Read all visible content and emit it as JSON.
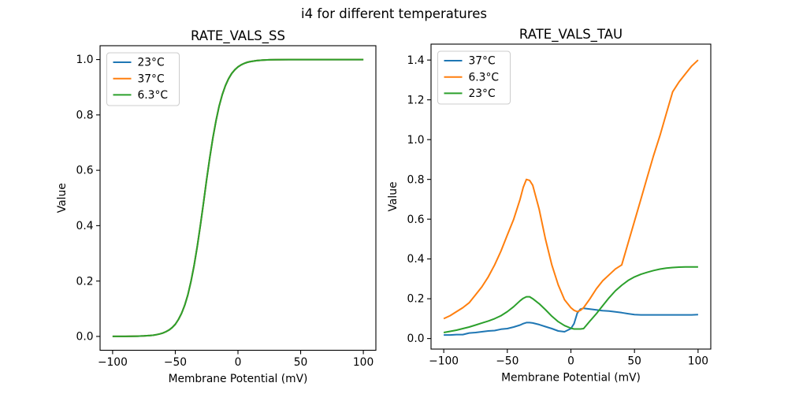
{
  "suptitle": "i4 for different temperatures",
  "colors": {
    "blue": "#1f77b4",
    "orange": "#ff7f0e",
    "green": "#2ca02c",
    "axis": "#000000",
    "legend_border": "#cccccc",
    "background": "#ffffff"
  },
  "chart_data": [
    {
      "type": "line",
      "title": "RATE_VALS_SS",
      "xlabel": "Membrane Potential (mV)",
      "ylabel": "Value",
      "grid": false,
      "legend_position": "upper-left",
      "xlim": [
        -110,
        110
      ],
      "ylim": [
        -0.05,
        1.05
      ],
      "xticks": [
        -100,
        -50,
        0,
        50,
        100
      ],
      "xtick_labels": [
        "−100",
        "−50",
        "0",
        "50",
        "100"
      ],
      "yticks": [
        0.0,
        0.2,
        0.4,
        0.6,
        0.8,
        1.0
      ],
      "ytick_labels": [
        "0.0",
        "0.2",
        "0.4",
        "0.6",
        "0.8",
        "1.0"
      ],
      "x": [
        -100,
        -95,
        -90,
        -85,
        -80,
        -75,
        -70,
        -67.5,
        -65,
        -62.5,
        -60,
        -57.5,
        -55,
        -52.5,
        -50,
        -47.5,
        -45,
        -42.5,
        -40,
        -37.5,
        -35,
        -32.5,
        -30,
        -27.5,
        -25,
        -22.5,
        -20,
        -17.5,
        -15,
        -12.5,
        -10,
        -7.5,
        -5,
        -2.5,
        0,
        2.5,
        5,
        7.5,
        10,
        15,
        20,
        25,
        30,
        40,
        50,
        60,
        70,
        80,
        90,
        100
      ],
      "series": [
        {
          "name": "23°C",
          "color_key": "blue",
          "values": [
            0.0001,
            0.0001,
            0.0002,
            0.0004,
            0.0009,
            0.0017,
            0.0032,
            0.0045,
            0.0063,
            0.0088,
            0.0121,
            0.0169,
            0.0232,
            0.032,
            0.0439,
            0.0611,
            0.0832,
            0.1124,
            0.1502,
            0.1978,
            0.256,
            0.3245,
            0.4013,
            0.4833,
            0.5662,
            0.6457,
            0.7178,
            0.7802,
            0.832,
            0.8736,
            0.9061,
            0.9309,
            0.9494,
            0.9633,
            0.9734,
            0.9808,
            0.9862,
            0.9901,
            0.9929,
            0.9963,
            0.9981,
            0.999,
            0.9995,
            0.9999,
            1.0,
            1.0,
            1.0,
            1.0,
            1.0,
            1.0
          ]
        },
        {
          "name": "37°C",
          "color_key": "orange",
          "values": [
            0.0001,
            0.0001,
            0.0002,
            0.0004,
            0.0009,
            0.0017,
            0.0032,
            0.0045,
            0.0063,
            0.0088,
            0.0121,
            0.0169,
            0.0232,
            0.032,
            0.0439,
            0.0611,
            0.0832,
            0.1124,
            0.1502,
            0.1978,
            0.256,
            0.3245,
            0.4013,
            0.4833,
            0.5662,
            0.6457,
            0.7178,
            0.7802,
            0.832,
            0.8736,
            0.9061,
            0.9309,
            0.9494,
            0.9633,
            0.9734,
            0.9808,
            0.9862,
            0.9901,
            0.9929,
            0.9963,
            0.9981,
            0.999,
            0.9995,
            0.9999,
            1.0,
            1.0,
            1.0,
            1.0,
            1.0,
            1.0
          ]
        },
        {
          "name": "6.3°C",
          "color_key": "green",
          "values": [
            0.0001,
            0.0001,
            0.0002,
            0.0004,
            0.0009,
            0.0017,
            0.0032,
            0.0045,
            0.0063,
            0.0088,
            0.0121,
            0.0169,
            0.0232,
            0.032,
            0.0439,
            0.0611,
            0.0832,
            0.1124,
            0.1502,
            0.1978,
            0.256,
            0.3245,
            0.4013,
            0.4833,
            0.5662,
            0.6457,
            0.7178,
            0.7802,
            0.832,
            0.8736,
            0.9061,
            0.9309,
            0.9494,
            0.9633,
            0.9734,
            0.9808,
            0.9862,
            0.9901,
            0.9929,
            0.9963,
            0.9981,
            0.999,
            0.9995,
            0.9999,
            1.0,
            1.0,
            1.0,
            1.0,
            1.0,
            1.0
          ]
        }
      ]
    },
    {
      "type": "line",
      "title": "RATE_VALS_TAU",
      "xlabel": "Membrane Potential (mV)",
      "ylabel": "Value",
      "grid": false,
      "legend_position": "upper-left",
      "xlim": [
        -110,
        110
      ],
      "ylim": [
        -0.053,
        1.48
      ],
      "xticks": [
        -100,
        -50,
        0,
        50,
        100
      ],
      "xtick_labels": [
        "−100",
        "−50",
        "0",
        "50",
        "100"
      ],
      "yticks": [
        0.0,
        0.2,
        0.4,
        0.6,
        0.8,
        1.0,
        1.2,
        1.4
      ],
      "ytick_labels": [
        "0.0",
        "0.2",
        "0.4",
        "0.6",
        "0.8",
        "1.0",
        "1.2",
        "1.4"
      ],
      "x": [
        -100,
        -95,
        -90,
        -85,
        -80,
        -75,
        -70,
        -65,
        -60,
        -55,
        -50,
        -45,
        -40,
        -37.5,
        -35,
        -32.5,
        -30,
        -25,
        -20,
        -15,
        -10,
        -5,
        0,
        2.5,
        5,
        7.5,
        10,
        15,
        20,
        25,
        30,
        35,
        40,
        45,
        50,
        55,
        60,
        65,
        70,
        75,
        80,
        85,
        90,
        95,
        100
      ],
      "series": [
        {
          "name": "37°C",
          "color_key": "blue",
          "values": [
            0.018,
            0.018,
            0.02,
            0.02,
            0.028,
            0.03,
            0.034,
            0.038,
            0.04,
            0.047,
            0.05,
            0.058,
            0.068,
            0.075,
            0.08,
            0.08,
            0.078,
            0.07,
            0.06,
            0.05,
            0.038,
            0.034,
            0.05,
            0.075,
            0.128,
            0.148,
            0.152,
            0.148,
            0.144,
            0.14,
            0.138,
            0.134,
            0.13,
            0.125,
            0.12,
            0.119,
            0.119,
            0.119,
            0.119,
            0.119,
            0.119,
            0.119,
            0.119,
            0.119,
            0.12
          ]
        },
        {
          "name": "6.3°C",
          "color_key": "orange",
          "values": [
            0.1,
            0.115,
            0.135,
            0.155,
            0.18,
            0.22,
            0.26,
            0.31,
            0.37,
            0.44,
            0.52,
            0.6,
            0.7,
            0.76,
            0.8,
            0.795,
            0.77,
            0.65,
            0.5,
            0.37,
            0.27,
            0.195,
            0.155,
            0.142,
            0.135,
            0.142,
            0.155,
            0.2,
            0.25,
            0.29,
            0.32,
            0.35,
            0.37,
            0.48,
            0.59,
            0.7,
            0.81,
            0.92,
            1.02,
            1.13,
            1.24,
            1.29,
            1.33,
            1.37,
            1.4
          ]
        },
        {
          "name": "23°C",
          "color_key": "green",
          "values": [
            0.03,
            0.036,
            0.042,
            0.05,
            0.058,
            0.068,
            0.078,
            0.088,
            0.1,
            0.115,
            0.135,
            0.16,
            0.19,
            0.202,
            0.21,
            0.21,
            0.2,
            0.175,
            0.145,
            0.112,
            0.085,
            0.065,
            0.052,
            0.048,
            0.048,
            0.048,
            0.05,
            0.088,
            0.125,
            0.165,
            0.205,
            0.24,
            0.268,
            0.292,
            0.31,
            0.323,
            0.333,
            0.342,
            0.349,
            0.354,
            0.357,
            0.359,
            0.36,
            0.36,
            0.36
          ]
        }
      ]
    }
  ]
}
